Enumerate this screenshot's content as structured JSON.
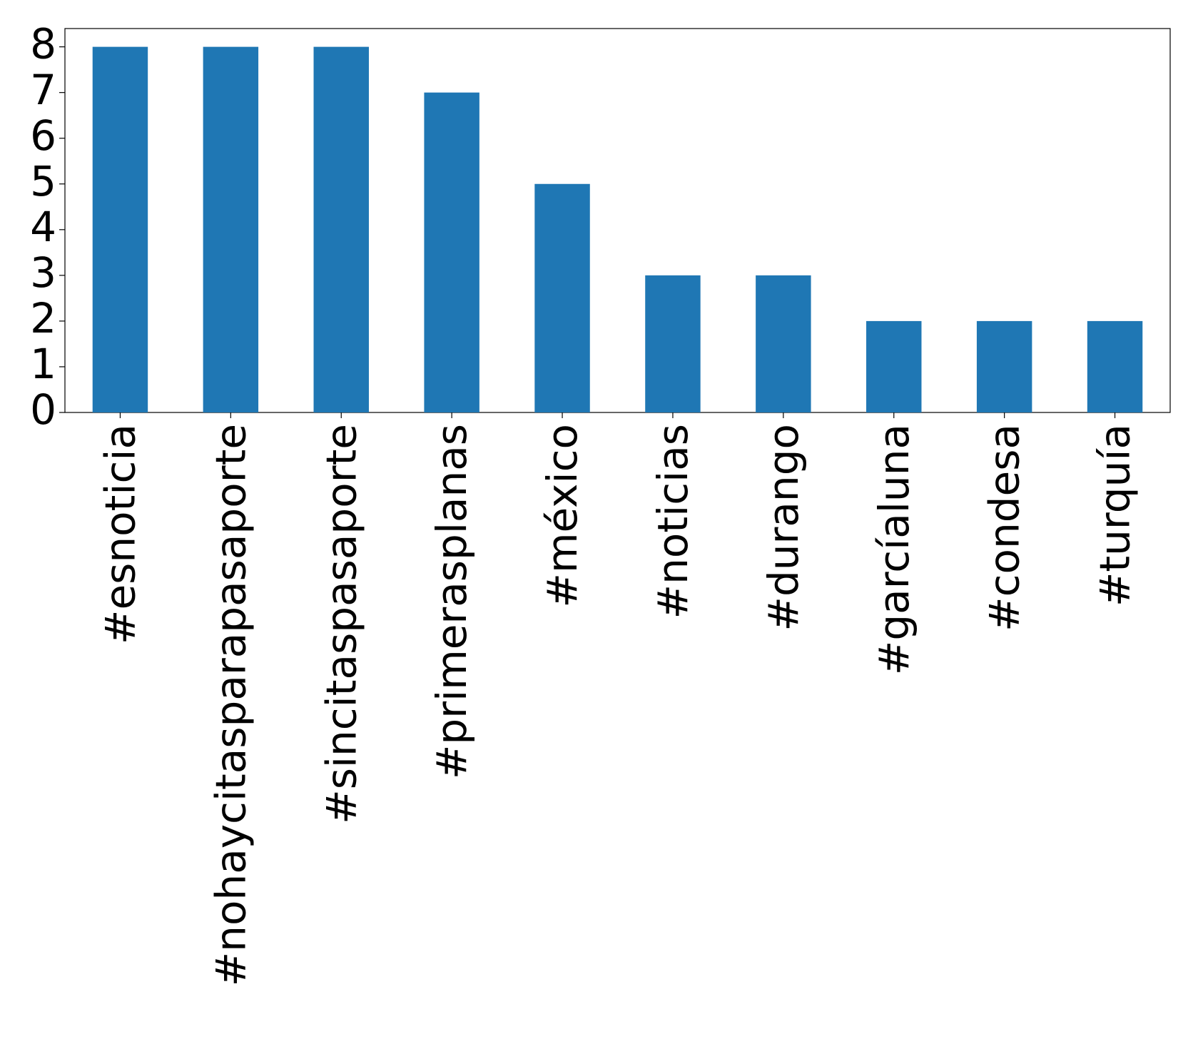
{
  "chart_data": {
    "type": "bar",
    "categories": [
      "#esnoticia",
      "#nohaycitasparapasaporte",
      "#sincitaspasaporte",
      "#primerasplanas",
      "#méxico",
      "#noticias",
      "#durango",
      "#garcíaluna",
      "#condesa",
      "#turquía"
    ],
    "values": [
      8,
      8,
      8,
      7,
      5,
      3,
      3,
      2,
      2,
      2
    ],
    "color": "#1f77b4",
    "ylim": [
      0,
      8.4
    ],
    "yticks": [
      0,
      1,
      2,
      3,
      4,
      5,
      6,
      7,
      8
    ],
    "grid": false
  }
}
